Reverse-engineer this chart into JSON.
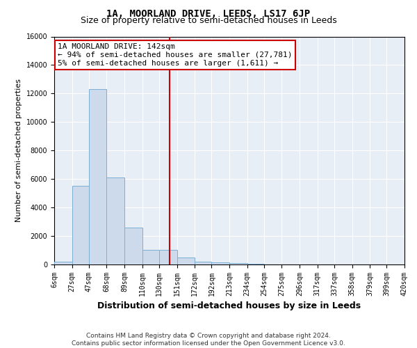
{
  "title": "1A, MOORLAND DRIVE, LEEDS, LS17 6JP",
  "subtitle": "Size of property relative to semi-detached houses in Leeds",
  "xlabel": "Distribution of semi-detached houses by size in Leeds",
  "ylabel": "Number of semi-detached properties",
  "footer_line1": "Contains HM Land Registry data © Crown copyright and database right 2024.",
  "footer_line2": "Contains public sector information licensed under the Open Government Licence v3.0.",
  "annotation_line1": "1A MOORLAND DRIVE: 142sqm",
  "annotation_line2": "← 94% of semi-detached houses are smaller (27,781)",
  "annotation_line3": "5% of semi-detached houses are larger (1,611) →",
  "bin_edges": [
    6,
    27,
    47,
    68,
    89,
    110,
    130,
    151,
    172,
    192,
    213,
    234,
    254,
    275,
    296,
    317,
    337,
    358,
    379,
    399,
    420
  ],
  "bin_counts": [
    200,
    5500,
    12300,
    6100,
    2600,
    1050,
    1050,
    500,
    200,
    150,
    80,
    50,
    0,
    0,
    0,
    0,
    0,
    0,
    0,
    0
  ],
  "bar_color": "#cddaec",
  "bar_edge_color": "#7bafd4",
  "vline_color": "#cc0000",
  "vline_x": 142,
  "background_color": "#e8eef6",
  "ylim": [
    0,
    16000
  ],
  "yticks": [
    0,
    2000,
    4000,
    6000,
    8000,
    10000,
    12000,
    14000,
    16000
  ],
  "grid_color": "#ffffff",
  "annotation_box_color": "#ffffff",
  "annotation_border_color": "#cc0000",
  "title_fontsize": 10,
  "subtitle_fontsize": 9,
  "ylabel_fontsize": 8,
  "xlabel_fontsize": 9,
  "tick_fontsize": 7,
  "footer_fontsize": 6.5,
  "annotation_fontsize": 8
}
